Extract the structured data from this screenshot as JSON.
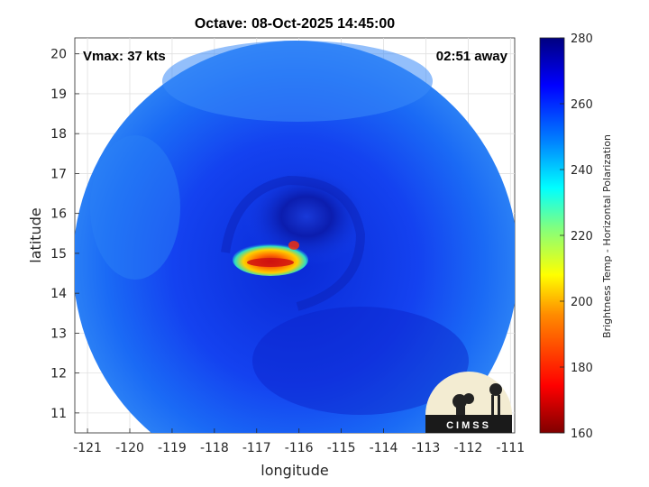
{
  "title": "Octave: 08-Oct-2025 14:45:00",
  "annotations": {
    "vmax": "Vmax: 37 kts",
    "time_away": "02:51 away"
  },
  "logo": {
    "text": "CIMSS"
  },
  "x_axis": {
    "label": "longitude",
    "ticks": [
      "-121",
      "-120",
      "-119",
      "-118",
      "-117",
      "-116",
      "-115",
      "-114",
      "-113",
      "-112",
      "-111"
    ]
  },
  "y_axis": {
    "label": "latitude",
    "ticks": [
      "20",
      "19",
      "18",
      "17",
      "16",
      "15",
      "14",
      "13",
      "12",
      "11"
    ]
  },
  "colorbar": {
    "label": "Brightness Temp - Horizontal Polarization",
    "ticks": [
      "280",
      "260",
      "240",
      "220",
      "200",
      "180",
      "160"
    ],
    "range": [
      160,
      280
    ]
  },
  "chart_data": {
    "type": "heatmap",
    "title": "Octave: 08-Oct-2025 14:45:00",
    "xlabel": "longitude",
    "ylabel": "latitude",
    "xlim": [
      -121.3,
      -110.9
    ],
    "ylim": [
      10.5,
      20.4
    ],
    "colorbar_range": [
      160,
      280
    ],
    "storm_center": {
      "lon": -116.2,
      "lat": 15.8
    },
    "features": [
      {
        "name": "cold core",
        "lon": -116.9,
        "lat": 14.9,
        "min_temp": 175
      }
    ]
  }
}
